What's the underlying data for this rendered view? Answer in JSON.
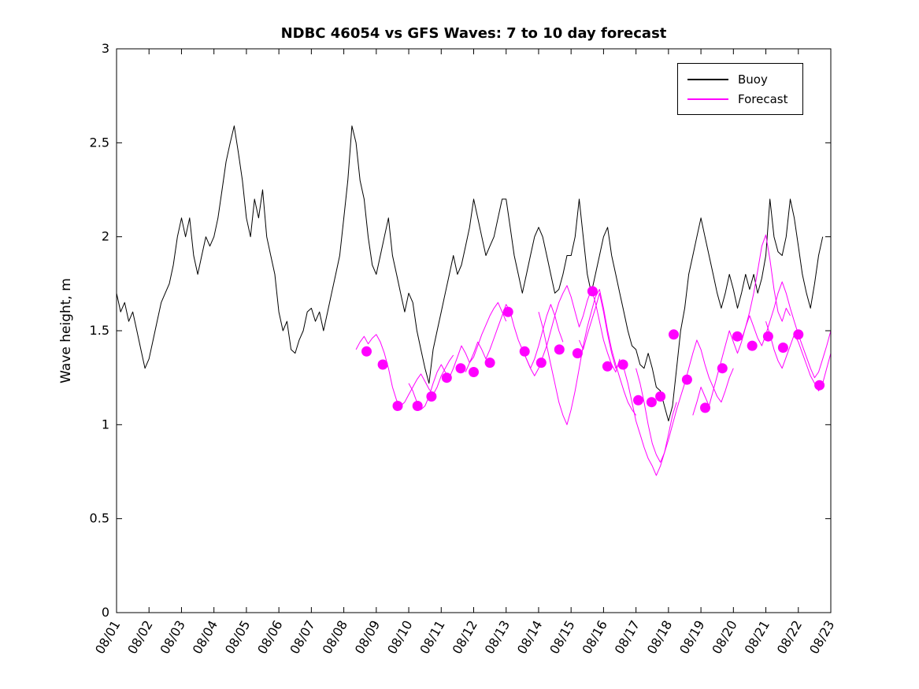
{
  "figure": {
    "background": "#ffffff"
  },
  "chart_data": {
    "type": "line",
    "title": "NDBC 46054 vs GFS Waves: 7 to 10 day forecast",
    "xlabel": "",
    "ylabel": "Wave height, m",
    "ylim": [
      0,
      3
    ],
    "xlim_days": [
      0,
      22
    ],
    "grid": false,
    "x_tick_labels": [
      "08/01",
      "08/02",
      "08/03",
      "08/04",
      "08/05",
      "08/06",
      "08/07",
      "08/08",
      "08/09",
      "08/10",
      "08/11",
      "08/12",
      "08/13",
      "08/14",
      "08/15",
      "08/16",
      "08/17",
      "08/18",
      "08/19",
      "08/20",
      "08/21",
      "08/22",
      "08/23"
    ],
    "x_tick_days": [
      0,
      1,
      2,
      3,
      4,
      5,
      6,
      7,
      8,
      9,
      10,
      11,
      12,
      13,
      14,
      15,
      16,
      17,
      18,
      19,
      20,
      21,
      22
    ],
    "y_ticks": [
      0,
      0.5,
      1,
      1.5,
      2,
      2.5,
      3
    ],
    "y_tick_labels": [
      "0",
      "0.5",
      "1",
      "1.5",
      "2",
      "2.5",
      "3"
    ],
    "legend": {
      "position": "top-right-inside",
      "entries": [
        {
          "label": "Buoy",
          "color": "#000000"
        },
        {
          "label": "Forecast",
          "color": "#ff00ff"
        }
      ]
    },
    "series": [
      {
        "name": "buoy",
        "color": "#000000",
        "width": 1,
        "x_start": 0,
        "x_step": 0.125,
        "values": [
          1.7,
          1.6,
          1.65,
          1.55,
          1.6,
          1.5,
          1.4,
          1.3,
          1.35,
          1.45,
          1.55,
          1.65,
          1.7,
          1.75,
          1.85,
          2.0,
          2.1,
          2.0,
          2.1,
          1.9,
          1.8,
          1.9,
          2.0,
          1.95,
          2.0,
          2.1,
          2.25,
          2.4,
          2.5,
          2.59,
          2.45,
          2.3,
          2.1,
          2.0,
          2.2,
          2.1,
          2.25,
          2.0,
          1.9,
          1.8,
          1.6,
          1.5,
          1.55,
          1.4,
          1.38,
          1.45,
          1.5,
          1.6,
          1.62,
          1.55,
          1.6,
          1.5,
          1.6,
          1.7,
          1.8,
          1.9,
          2.1,
          2.3,
          2.59,
          2.5,
          2.3,
          2.2,
          2.0,
          1.85,
          1.8,
          1.9,
          2.0,
          2.1,
          1.9,
          1.8,
          1.7,
          1.6,
          1.7,
          1.65,
          1.5,
          1.4,
          1.3,
          1.22,
          1.4,
          1.5,
          1.6,
          1.7,
          1.8,
          1.9,
          1.8,
          1.85,
          1.95,
          2.05,
          2.2,
          2.1,
          2.0,
          1.9,
          1.95,
          2.0,
          2.1,
          2.2,
          2.2,
          2.05,
          1.9,
          1.8,
          1.7,
          1.8,
          1.9,
          2.0,
          2.05,
          2.0,
          1.9,
          1.8,
          1.7,
          1.72,
          1.8,
          1.9,
          1.9,
          2.0,
          2.2,
          2.0,
          1.8,
          1.7,
          1.8,
          1.9,
          2.0,
          2.05,
          1.9,
          1.8,
          1.7,
          1.6,
          1.5,
          1.42,
          1.4,
          1.32,
          1.3,
          1.38,
          1.3,
          1.2,
          1.18,
          1.1,
          1.02,
          1.1,
          1.3,
          1.5,
          1.62,
          1.8,
          1.9,
          2.0,
          2.1,
          2.0,
          1.9,
          1.8,
          1.7,
          1.62,
          1.7,
          1.8,
          1.72,
          1.62,
          1.7,
          1.8,
          1.72,
          1.8,
          1.7,
          1.78,
          1.9,
          2.2,
          2.0,
          1.92,
          1.9,
          2.0,
          2.2,
          2.1,
          1.95,
          1.8,
          1.7,
          1.62,
          1.75,
          1.9,
          2.0
        ]
      },
      {
        "name": "forecast-run-1",
        "color": "#ff00ff",
        "width": 1,
        "x_start": 7.375,
        "x_step": 0.125,
        "values": [
          1.4,
          1.44,
          1.47,
          1.43,
          1.46,
          1.48,
          1.44,
          1.38,
          1.3,
          1.2,
          1.13,
          1.1,
          1.12,
          1.16,
          1.2,
          1.24,
          1.27,
          1.23,
          1.19,
          1.16,
          1.2,
          1.26,
          1.3,
          1.34,
          1.37
        ]
      },
      {
        "name": "forecast-run-2",
        "color": "#ff00ff",
        "width": 1,
        "x_start": 9.0,
        "x_step": 0.125,
        "values": [
          1.22,
          1.18,
          1.12,
          1.08,
          1.1,
          1.15,
          1.22,
          1.28,
          1.32,
          1.28,
          1.25,
          1.3,
          1.36,
          1.42,
          1.38,
          1.33,
          1.36,
          1.42,
          1.48,
          1.53,
          1.58,
          1.62,
          1.65,
          1.6,
          1.55
        ]
      },
      {
        "name": "forecast-run-3",
        "color": "#ff00ff",
        "width": 1,
        "x_start": 10.75,
        "x_step": 0.125,
        "values": [
          1.28,
          1.33,
          1.38,
          1.44,
          1.4,
          1.35,
          1.4,
          1.46,
          1.52,
          1.58,
          1.64,
          1.6,
          1.52,
          1.45,
          1.4,
          1.35,
          1.3,
          1.35,
          1.42,
          1.5,
          1.58,
          1.64,
          1.58,
          1.5,
          1.44
        ]
      },
      {
        "name": "forecast-run-4",
        "color": "#ff00ff",
        "width": 1,
        "x_start": 12.5,
        "x_step": 0.125,
        "values": [
          1.4,
          1.35,
          1.3,
          1.26,
          1.3,
          1.36,
          1.42,
          1.5,
          1.58,
          1.65,
          1.7,
          1.74,
          1.68,
          1.6,
          1.52,
          1.58,
          1.66,
          1.72,
          1.65,
          1.55,
          1.45,
          1.38,
          1.32,
          1.28,
          1.35
        ]
      },
      {
        "name": "forecast-run-5",
        "color": "#ff00ff",
        "width": 1,
        "x_start": 13.0,
        "x_step": 0.125,
        "values": [
          1.6,
          1.52,
          1.42,
          1.32,
          1.22,
          1.12,
          1.05,
          1.0,
          1.08,
          1.18,
          1.3,
          1.42,
          1.52,
          1.6,
          1.68,
          1.72,
          1.62,
          1.5,
          1.4,
          1.32,
          1.25,
          1.18,
          1.12,
          1.08,
          1.05
        ]
      },
      {
        "name": "forecast-run-6",
        "color": "#ff00ff",
        "width": 1,
        "x_start": 14.25,
        "x_step": 0.125,
        "values": [
          1.45,
          1.4,
          1.48,
          1.55,
          1.62,
          1.7,
          1.6,
          1.48,
          1.38,
          1.3,
          1.33,
          1.3,
          1.22,
          1.12,
          1.02,
          0.95,
          0.88,
          0.82,
          0.78,
          0.73,
          0.78,
          0.85,
          0.95,
          1.05,
          1.12
        ]
      },
      {
        "name": "forecast-run-7",
        "color": "#ff00ff",
        "width": 1,
        "x_start": 16.0,
        "x_step": 0.125,
        "values": [
          1.3,
          1.22,
          1.12,
          1.0,
          0.9,
          0.84,
          0.8,
          0.85,
          0.92,
          1.0,
          1.08,
          1.15,
          1.22,
          1.3,
          1.38,
          1.45,
          1.4,
          1.32,
          1.25,
          1.2,
          1.15,
          1.12,
          1.18,
          1.25,
          1.3
        ]
      },
      {
        "name": "forecast-run-8",
        "color": "#ff00ff",
        "width": 1,
        "x_start": 17.75,
        "x_step": 0.125,
        "values": [
          1.05,
          1.12,
          1.2,
          1.15,
          1.1,
          1.18,
          1.26,
          1.34,
          1.42,
          1.5,
          1.44,
          1.38,
          1.44,
          1.52,
          1.6,
          1.7,
          1.82,
          1.95,
          2.01,
          1.88,
          1.72,
          1.6,
          1.55,
          1.62,
          1.58
        ]
      },
      {
        "name": "forecast-run-9",
        "color": "#ff00ff",
        "width": 1,
        "x_start": 19.25,
        "x_step": 0.125,
        "values": [
          1.45,
          1.52,
          1.58,
          1.52,
          1.46,
          1.42,
          1.48,
          1.55,
          1.62,
          1.7,
          1.76,
          1.7,
          1.62,
          1.55,
          1.48,
          1.42,
          1.36,
          1.3,
          1.25,
          1.28,
          1.35,
          1.42,
          1.5,
          1.57,
          1.62
        ]
      },
      {
        "name": "forecast-run-10",
        "color": "#ff00ff",
        "width": 1,
        "x_start": 20.0,
        "x_step": 0.125,
        "values": [
          1.55,
          1.48,
          1.4,
          1.34,
          1.3,
          1.36,
          1.42,
          1.48,
          1.44,
          1.38,
          1.32,
          1.26,
          1.22,
          1.18,
          1.22,
          1.3,
          1.38
        ]
      }
    ],
    "markers": {
      "name": "forecast-dots",
      "color": "#ff00ff",
      "points": [
        [
          7.7,
          1.39
        ],
        [
          8.2,
          1.32
        ],
        [
          8.66,
          1.1
        ],
        [
          9.27,
          1.1
        ],
        [
          9.7,
          1.15
        ],
        [
          10.17,
          1.25
        ],
        [
          10.6,
          1.3
        ],
        [
          11.0,
          1.28
        ],
        [
          11.5,
          1.33
        ],
        [
          12.06,
          1.6
        ],
        [
          12.57,
          1.39
        ],
        [
          13.08,
          1.33
        ],
        [
          13.64,
          1.4
        ],
        [
          14.2,
          1.38
        ],
        [
          14.66,
          1.71
        ],
        [
          15.12,
          1.31
        ],
        [
          15.6,
          1.32
        ],
        [
          16.07,
          1.13
        ],
        [
          16.48,
          1.12
        ],
        [
          16.75,
          1.15
        ],
        [
          17.16,
          1.48
        ],
        [
          17.57,
          1.24
        ],
        [
          18.13,
          1.09
        ],
        [
          18.66,
          1.3
        ],
        [
          19.12,
          1.47
        ],
        [
          19.58,
          1.42
        ],
        [
          20.07,
          1.47
        ],
        [
          20.53,
          1.41
        ],
        [
          21.0,
          1.48
        ],
        [
          21.65,
          1.21
        ]
      ]
    }
  }
}
